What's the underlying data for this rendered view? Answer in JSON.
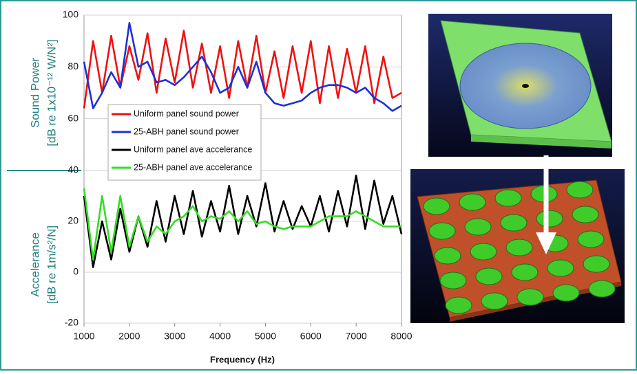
{
  "chart_data": [
    {
      "type": "line",
      "ylabel": "Sound Power",
      "ylabel_units": "[dB re 1x10⁻¹² W/N²]",
      "xlim": [
        1000,
        8000
      ],
      "ylim": [
        40,
        100
      ],
      "yticks": [
        40,
        60,
        80,
        100
      ],
      "grid": true,
      "x": [
        1000,
        1200,
        1400,
        1600,
        1800,
        2000,
        2200,
        2400,
        2600,
        2800,
        3000,
        3200,
        3400,
        3600,
        3800,
        4000,
        4200,
        4400,
        4600,
        4800,
        5000,
        5200,
        5400,
        5600,
        5800,
        6000,
        6200,
        6400,
        6600,
        6800,
        7000,
        7200,
        7400,
        7600,
        7800,
        8000
      ],
      "series": [
        {
          "name": "Uniform panel sound power",
          "color": "#ee1111",
          "values": [
            64,
            90,
            70,
            92,
            72,
            88,
            75,
            93,
            70,
            91,
            74,
            94,
            72,
            89,
            70,
            88,
            68,
            90,
            72,
            92,
            70,
            86,
            68,
            88,
            70,
            90,
            66,
            88,
            68,
            87,
            70,
            88,
            66,
            84,
            68,
            70
          ]
        },
        {
          "name": "25-ABH panel sound power",
          "color": "#1f2fd6",
          "values": [
            82,
            64,
            70,
            78,
            72,
            97,
            80,
            82,
            74,
            75,
            73,
            76,
            80,
            84,
            78,
            70,
            72,
            80,
            72,
            82,
            70,
            66,
            65,
            66,
            67,
            70,
            72,
            73,
            73,
            72,
            70,
            72,
            68,
            66,
            63,
            65
          ]
        }
      ]
    },
    {
      "type": "line",
      "ylabel": "Accelerance",
      "ylabel_units": "[dB re 1m/s²/N]",
      "xlabel": "Frequency (Hz)",
      "xlim": [
        1000,
        8000
      ],
      "xticks": [
        1000,
        2000,
        3000,
        4000,
        5000,
        6000,
        7000,
        8000
      ],
      "ylim": [
        -20,
        40
      ],
      "yticks": [
        -20,
        0,
        20,
        40
      ],
      "grid": true,
      "x": [
        1000,
        1200,
        1400,
        1600,
        1800,
        2000,
        2200,
        2400,
        2600,
        2800,
        3000,
        3200,
        3400,
        3600,
        3800,
        4000,
        4200,
        4400,
        4600,
        4800,
        5000,
        5200,
        5400,
        5600,
        5800,
        6000,
        6200,
        6400,
        6600,
        6800,
        7000,
        7200,
        7400,
        7600,
        7800,
        8000
      ],
      "series": [
        {
          "name": "Uniform panel ave accelerance",
          "color": "#000000",
          "values": [
            30,
            2,
            20,
            5,
            25,
            8,
            22,
            10,
            28,
            12,
            30,
            15,
            32,
            14,
            28,
            16,
            34,
            15,
            30,
            18,
            35,
            16,
            28,
            17,
            26,
            18,
            30,
            16,
            32,
            18,
            38,
            17,
            36,
            19,
            30,
            15
          ]
        },
        {
          "name": "25-ABH panel ave accelerance",
          "color": "#33dd22",
          "values": [
            33,
            5,
            30,
            8,
            30,
            10,
            22,
            12,
            18,
            15,
            20,
            22,
            26,
            20,
            22,
            21,
            24,
            20,
            24,
            19,
            20,
            18,
            17,
            18,
            18,
            18,
            20,
            22,
            22,
            22,
            24,
            22,
            20,
            18,
            18,
            18
          ]
        }
      ]
    }
  ]
}
